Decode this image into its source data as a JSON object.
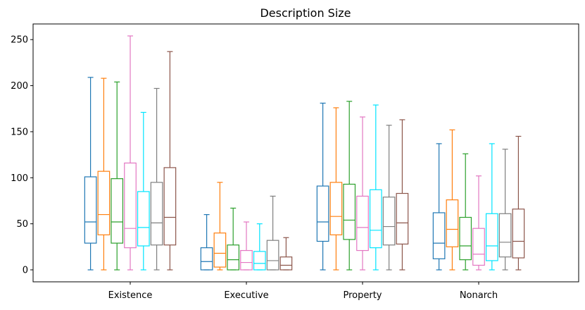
{
  "chart_data": {
    "type": "box",
    "title": "Description Size",
    "xlabel": "",
    "ylabel": "",
    "ylim": [
      -13,
      267
    ],
    "yticks": [
      0,
      50,
      100,
      150,
      200,
      250
    ],
    "yticklabels": [
      "0",
      "50",
      "100",
      "150",
      "200",
      "250"
    ],
    "grid": false,
    "legend": "none",
    "categories": [
      "Existence",
      "Executive",
      "Property",
      "Nonarch"
    ],
    "series": [
      {
        "color": "#1f77b4",
        "boxes": [
          {
            "whislo": 0,
            "q1": 29,
            "med": 52,
            "q3": 101,
            "whishi": 209
          },
          {
            "whislo": 0,
            "q1": 0,
            "med": 9,
            "q3": 24,
            "whishi": 60
          },
          {
            "whislo": 0,
            "q1": 31,
            "med": 52,
            "q3": 91,
            "whishi": 181
          },
          {
            "whislo": 0,
            "q1": 12,
            "med": 29,
            "q3": 62,
            "whishi": 137
          }
        ]
      },
      {
        "color": "#ff7f0e",
        "boxes": [
          {
            "whislo": 0,
            "q1": 38,
            "med": 60,
            "q3": 107,
            "whishi": 208
          },
          {
            "whislo": 0,
            "q1": 3,
            "med": 18,
            "q3": 40,
            "whishi": 95
          },
          {
            "whislo": 0,
            "q1": 38,
            "med": 58,
            "q3": 95,
            "whishi": 176
          },
          {
            "whislo": 0,
            "q1": 25,
            "med": 44,
            "q3": 76,
            "whishi": 152
          }
        ]
      },
      {
        "color": "#2ca02c",
        "boxes": [
          {
            "whislo": 0,
            "q1": 29,
            "med": 52,
            "q3": 99,
            "whishi": 204
          },
          {
            "whislo": 0,
            "q1": 0,
            "med": 11,
            "q3": 27,
            "whishi": 67
          },
          {
            "whislo": 0,
            "q1": 33,
            "med": 54,
            "q3": 93,
            "whishi": 183
          },
          {
            "whislo": 0,
            "q1": 11,
            "med": 26,
            "q3": 57,
            "whishi": 126
          }
        ]
      },
      {
        "color": "#e377c2",
        "boxes": [
          {
            "whislo": 0,
            "q1": 24,
            "med": 45,
            "q3": 116,
            "whishi": 254
          },
          {
            "whislo": 0,
            "q1": 0,
            "med": 8,
            "q3": 21,
            "whishi": 52
          },
          {
            "whislo": 0,
            "q1": 21,
            "med": 46,
            "q3": 80,
            "whishi": 166
          },
          {
            "whislo": 0,
            "q1": 5,
            "med": 17,
            "q3": 45,
            "whishi": 102
          }
        ]
      },
      {
        "color": "#00e5ff",
        "boxes": [
          {
            "whislo": 0,
            "q1": 26,
            "med": 46,
            "q3": 85,
            "whishi": 171
          },
          {
            "whislo": 0,
            "q1": 0,
            "med": 7,
            "q3": 20,
            "whishi": 50
          },
          {
            "whislo": 0,
            "q1": 24,
            "med": 43,
            "q3": 87,
            "whishi": 179
          },
          {
            "whislo": 0,
            "q1": 10,
            "med": 26,
            "q3": 61,
            "whishi": 137
          }
        ]
      },
      {
        "color": "#7f7f7f",
        "boxes": [
          {
            "whislo": 0,
            "q1": 27,
            "med": 51,
            "q3": 95,
            "whishi": 197
          },
          {
            "whislo": 0,
            "q1": 0,
            "med": 10,
            "q3": 32,
            "whishi": 80
          },
          {
            "whislo": 0,
            "q1": 27,
            "med": 47,
            "q3": 79,
            "whishi": 157
          },
          {
            "whislo": 0,
            "q1": 14,
            "med": 30,
            "q3": 61,
            "whishi": 131
          }
        ]
      },
      {
        "color": "#8c564b",
        "boxes": [
          {
            "whislo": 0,
            "q1": 27,
            "med": 57,
            "q3": 111,
            "whishi": 237
          },
          {
            "whislo": 0,
            "q1": 0,
            "med": 5,
            "q3": 14,
            "whishi": 35
          },
          {
            "whislo": 0,
            "q1": 28,
            "med": 51,
            "q3": 83,
            "whishi": 163
          },
          {
            "whislo": 0,
            "q1": 13,
            "med": 31,
            "q3": 66,
            "whishi": 145
          }
        ]
      }
    ]
  }
}
